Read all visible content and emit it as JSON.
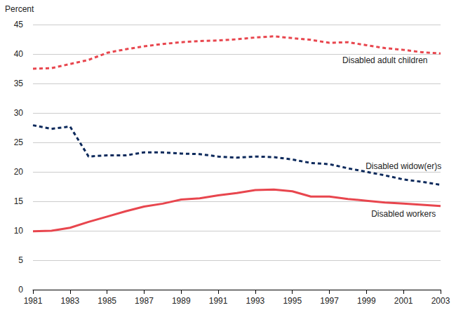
{
  "chart_data": {
    "type": "line",
    "y_label": "Percent",
    "x": [
      1981,
      1982,
      1983,
      1984,
      1985,
      1986,
      1987,
      1988,
      1989,
      1990,
      1991,
      1992,
      1993,
      1994,
      1995,
      1996,
      1997,
      1998,
      1999,
      2000,
      2001,
      2002,
      2003
    ],
    "xlim": [
      1981,
      2003
    ],
    "xticks": [
      1981,
      1983,
      1985,
      1987,
      1989,
      1991,
      1993,
      1995,
      1997,
      1999,
      2001,
      2003
    ],
    "ylim": [
      0,
      45
    ],
    "yticks": [
      0,
      5,
      10,
      15,
      20,
      25,
      30,
      35,
      40,
      45
    ],
    "grid": true,
    "series": [
      {
        "name": "Disabled adult children",
        "color": "#e8464e",
        "line_style": "dashed",
        "values": [
          37.5,
          37.6,
          38.3,
          39.0,
          40.2,
          40.8,
          41.3,
          41.7,
          42.0,
          42.2,
          42.3,
          42.5,
          42.8,
          43.0,
          42.7,
          42.4,
          41.9,
          42.0,
          41.5,
          41.0,
          40.7,
          40.3,
          40.1
        ]
      },
      {
        "name": "Disabled widow(er)s",
        "color": "#0d2a5c",
        "line_style": "dashed",
        "values": [
          27.9,
          27.3,
          27.7,
          22.6,
          22.8,
          22.8,
          23.3,
          23.3,
          23.1,
          23.0,
          22.6,
          22.4,
          22.6,
          22.5,
          22.1,
          21.5,
          21.3,
          20.6,
          20.0,
          19.4,
          18.7,
          18.3,
          17.8
        ]
      },
      {
        "name": "Disabled workers",
        "color": "#e8464e",
        "line_style": "solid",
        "values": [
          9.9,
          10.0,
          10.5,
          11.5,
          12.4,
          13.3,
          14.1,
          14.6,
          15.3,
          15.5,
          16.0,
          16.4,
          16.9,
          17.0,
          16.7,
          15.8,
          15.8,
          15.4,
          15.1,
          14.8,
          14.6,
          14.4,
          14.2
        ]
      }
    ]
  }
}
